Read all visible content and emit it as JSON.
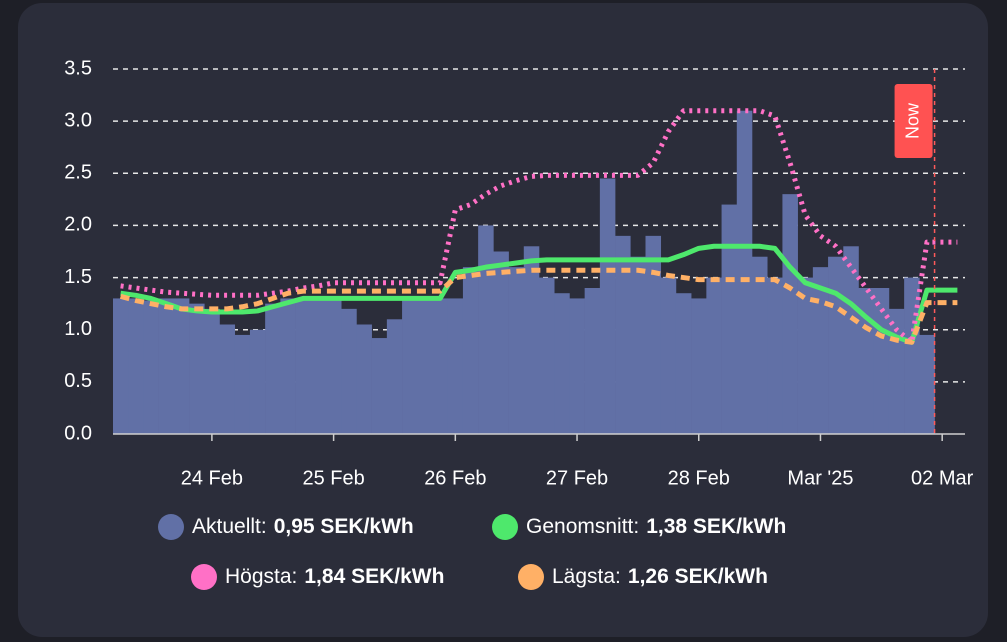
{
  "chart_data": {
    "type": "bar-line",
    "categories": [
      null,
      null,
      null,
      null,
      null,
      null,
      "24 Feb",
      null,
      null,
      null,
      null,
      null,
      null,
      null,
      "25 Feb",
      null,
      null,
      null,
      null,
      null,
      null,
      null,
      "26 Feb",
      null,
      null,
      null,
      null,
      null,
      null,
      null,
      "27 Feb",
      null,
      null,
      null,
      null,
      null,
      null,
      null,
      "28 Feb",
      null,
      null,
      null,
      null,
      null,
      null,
      null,
      "Mar '25",
      null,
      null,
      null,
      null,
      null,
      null,
      null,
      "02 Mar",
      null
    ],
    "ylim": [
      0,
      3.5
    ],
    "yticks": [
      {
        "value": 0,
        "label": "0.0"
      },
      0.5,
      {
        "value": 1,
        "label": "1.0"
      },
      1.5,
      {
        "value": 2,
        "label": "2.0"
      },
      2.5,
      {
        "value": 3,
        "label": "3.0"
      },
      3.5
    ],
    "grid": true,
    "annotation": "Now",
    "series": [
      {
        "name": "Aktuellt:",
        "legend_value": "0,95 SEK/kWh",
        "color": "#6170a6",
        "kind": "bar",
        "values": [
          1.3,
          1.3,
          1.28,
          1.3,
          1.3,
          1.25,
          1.2,
          1.05,
          0.95,
          1.0,
          1.25,
          1.3,
          1.3,
          1.3,
          1.3,
          1.2,
          1.05,
          0.92,
          1.1,
          1.3,
          1.3,
          1.3,
          1.3,
          1.6,
          2.0,
          1.75,
          1.6,
          1.8,
          1.5,
          1.35,
          1.3,
          1.4,
          2.45,
          1.9,
          1.7,
          1.9,
          1.5,
          1.35,
          1.3,
          1.5,
          2.2,
          3.1,
          1.7,
          1.5,
          2.3,
          1.5,
          1.6,
          1.7,
          1.8,
          1.4,
          1.4,
          1.2,
          1.5,
          0.95,
          null,
          null
        ]
      },
      {
        "name": "Genomsnitt:",
        "legend_value": "1,38 SEK/kWh",
        "color": "#4ee86c",
        "kind": "line",
        "dash": "",
        "values": [
          1.35,
          1.33,
          1.3,
          1.25,
          1.2,
          1.18,
          1.17,
          1.17,
          1.17,
          1.18,
          1.22,
          1.26,
          1.3,
          1.3,
          1.3,
          1.3,
          1.3,
          1.3,
          1.3,
          1.3,
          1.3,
          1.3,
          1.55,
          1.57,
          1.6,
          1.62,
          1.64,
          1.66,
          1.67,
          1.67,
          1.67,
          1.67,
          1.67,
          1.67,
          1.67,
          1.67,
          1.67,
          1.72,
          1.78,
          1.8,
          1.8,
          1.8,
          1.8,
          1.78,
          1.6,
          1.45,
          1.4,
          1.35,
          1.25,
          1.12,
          1.0,
          0.93,
          0.88,
          1.38,
          1.38,
          1.38
        ]
      },
      {
        "name": "Högsta:",
        "legend_value": "1,84 SEK/kWh",
        "color": "#ff70c6",
        "kind": "line",
        "dash": "3 5",
        "values": [
          1.42,
          1.4,
          1.38,
          1.36,
          1.35,
          1.34,
          1.33,
          1.33,
          1.33,
          1.33,
          1.35,
          1.37,
          1.4,
          1.42,
          1.45,
          1.45,
          1.45,
          1.45,
          1.45,
          1.45,
          1.45,
          1.45,
          2.15,
          2.2,
          2.3,
          2.38,
          2.43,
          2.47,
          2.48,
          2.48,
          2.48,
          2.48,
          2.48,
          2.48,
          2.48,
          2.6,
          2.9,
          3.1,
          3.1,
          3.1,
          3.1,
          3.1,
          3.1,
          3.05,
          2.6,
          2.1,
          1.9,
          1.8,
          1.6,
          1.4,
          1.2,
          1.0,
          0.88,
          1.84,
          1.84,
          1.84
        ]
      },
      {
        "name": "Lägsta:",
        "legend_value": "1,26 SEK/kWh",
        "color": "#ffb066",
        "kind": "line",
        "dash": "9 6",
        "values": [
          1.32,
          1.28,
          1.25,
          1.22,
          1.2,
          1.2,
          1.2,
          1.2,
          1.22,
          1.25,
          1.3,
          1.35,
          1.37,
          1.37,
          1.37,
          1.37,
          1.37,
          1.37,
          1.37,
          1.37,
          1.37,
          1.37,
          1.5,
          1.52,
          1.54,
          1.55,
          1.56,
          1.57,
          1.57,
          1.57,
          1.57,
          1.57,
          1.57,
          1.57,
          1.57,
          1.55,
          1.52,
          1.5,
          1.48,
          1.48,
          1.48,
          1.48,
          1.48,
          1.48,
          1.4,
          1.3,
          1.27,
          1.22,
          1.12,
          1.02,
          0.94,
          0.9,
          0.88,
          1.26,
          1.26,
          1.26
        ]
      }
    ]
  }
}
